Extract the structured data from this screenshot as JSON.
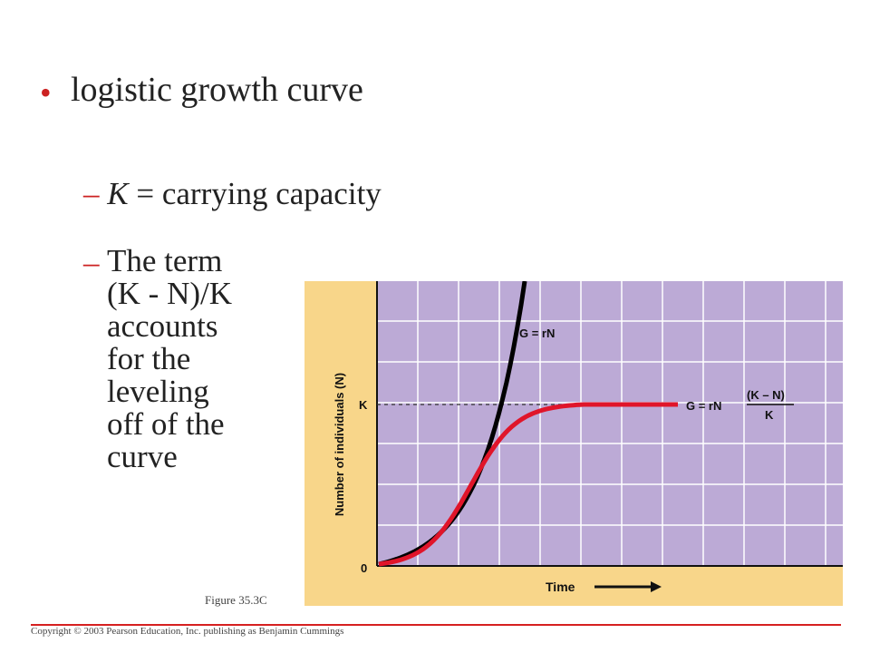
{
  "slide": {
    "bullet_text": "logistic growth curve",
    "sub1_var": "K",
    "sub1_rest": " = carrying capacity",
    "sub2_lines": [
      "The term",
      "(K - N)/K",
      "accounts",
      "for the",
      "leveling",
      "off of the",
      "curve"
    ],
    "figure_caption": "Figure 35.3C",
    "copyright": "Copyright © 2003 Pearson Education, Inc. publishing as Benjamin Cummings"
  },
  "chart_data": {
    "type": "line",
    "xlabel": "Time",
    "ylabel": "Number of individuals (N)",
    "y_ticks": [
      "0",
      "K"
    ],
    "series": [
      {
        "name": "G = rN",
        "kind": "exponential",
        "color": "#000000"
      },
      {
        "name": "G = rN (K – N)/K",
        "kind": "logistic",
        "color": "#e0152a"
      }
    ],
    "labels": {
      "exp_label": "G = rN",
      "log_label": "G = rN",
      "log_num": "(K – N)",
      "log_den": "K"
    },
    "colors": {
      "plot_bg": "#bcaad6",
      "panel_bg": "#f8d68a",
      "grid": "#ffffff",
      "logistic": "#e0152a",
      "exponential": "#000000"
    }
  }
}
